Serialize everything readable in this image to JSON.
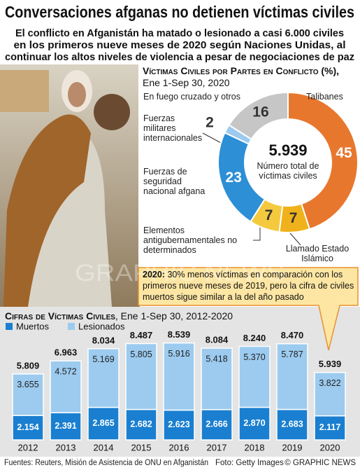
{
  "title": "Conversaciones afganas no detienen víctimas civiles",
  "subtitle": [
    "El conflicto en Afganistán ha matado o lesionado a casi 6.000 civiles",
    "en los primeros nueve meses de 2020 según Naciones Unidas, al",
    "continuar los altos niveles de violencia a pesar de negociaciones de paz"
  ],
  "chart_data": [
    {
      "type": "donut",
      "title": "Víctimas Civiles por Partes en Conflicto (%),",
      "subtitle": "Ene 1-Sep 30, 2020",
      "categories": [
        "Talibanes",
        "Llamado Estado Islámico",
        "Elementos antigubernamentales no determinados",
        "Fuerzas de seguridad nacional afgana",
        "Fuerzas militares internacionales",
        "En fuego cruzado y otros"
      ],
      "values": [
        45,
        7,
        7,
        23,
        2,
        16
      ],
      "colors": [
        "#e8772e",
        "#efb21c",
        "#f5c93e",
        "#2d8fd5",
        "#9ccbef",
        "#c6c6c6"
      ],
      "total": "5.939",
      "total_caption": "Número total de víctimas civiles"
    },
    {
      "type": "stacked_bar",
      "title": "Cifras de Víctimas Civiles",
      "subtitle": ", Ene 1-Sep 30, 2012-2020",
      "categories": [
        "2012",
        "2013",
        "2014",
        "2015",
        "2016",
        "2017",
        "2018",
        "2019",
        "2020"
      ],
      "series": [
        {
          "name": "Muertos",
          "color": "#1a7fd0",
          "values": [
            2154,
            2391,
            2865,
            2682,
            2623,
            2666,
            2870,
            2683,
            2117
          ],
          "value_labels": [
            "2.154",
            "2.391",
            "2.865",
            "2.682",
            "2.623",
            "2.666",
            "2.870",
            "2.683",
            "2.117"
          ]
        },
        {
          "name": "Lesionados",
          "color": "#9ccbef",
          "values": [
            3655,
            4572,
            5169,
            5805,
            5916,
            5418,
            5370,
            5787,
            3822
          ],
          "value_labels": [
            "3.655",
            "4.572",
            "5.169",
            "5.805",
            "5.916",
            "5.418",
            "5.370",
            "5.787",
            "3.822"
          ]
        }
      ],
      "totals": [
        {
          "value": 5809,
          "label": "5.809"
        },
        {
          "value": 6963,
          "label": "6.963"
        },
        {
          "value": 8034,
          "label": "8.034"
        },
        {
          "value": 8487,
          "label": "8.487"
        },
        {
          "value": 8539,
          "label": "8.539"
        },
        {
          "value": 8084,
          "label": "8.084"
        },
        {
          "value": 8240,
          "label": "8.240"
        },
        {
          "value": 8470,
          "label": "8.470"
        },
        {
          "value": 5939,
          "label": "5.939"
        }
      ]
    }
  ],
  "callout": {
    "lead": "2020:",
    "text": "30% menos víctimas en comparación con los primeros nueve meses de 2019, pero la cifra de civiles muertos sigue similar a la del año pasado"
  },
  "watermark": "GRAPHIC NEWS",
  "footer": {
    "sources": "Fuentes: Reuters, Misión de Asistencia de ONU en Afganistán",
    "photo": "Foto: Getty Images",
    "copyright": "© GRAPHIC NEWS"
  }
}
